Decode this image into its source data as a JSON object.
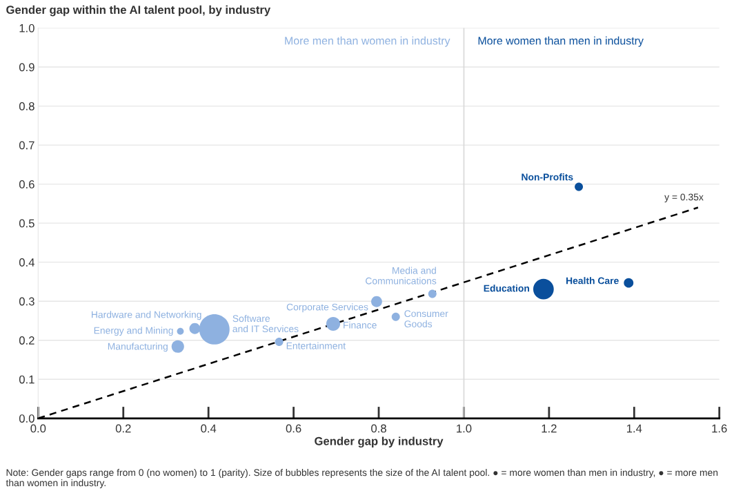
{
  "chart_data": {
    "type": "bubble",
    "title": "Gender gap within the AI talent pool, by industry",
    "xlabel": "Gender gap by industry",
    "series": [
      {
        "color": "#8eb1e0",
        "x": [
          0.328,
          0.334,
          0.368,
          0.414,
          0.566,
          0.693,
          0.795,
          0.84,
          0.926
        ],
        "values": [
          0.184,
          0.223,
          0.23,
          0.228,
          0.196,
          0.242,
          0.299,
          0.26,
          0.319
        ],
        "sizes": [
          0.17,
          0.05,
          0.13,
          1,
          0.074,
          0.21,
          0.13,
          0.074,
          0.074
        ]
      },
      {
        "color": "#0a4f9c",
        "x": [
          1.187,
          1.27,
          1.387
        ],
        "values": [
          0.331,
          0.593,
          0.347
        ],
        "sizes": [
          0.46,
          0.074,
          0.1
        ]
      },
      {
        "type": "line",
        "color": "#000000",
        "line_style": "dashed",
        "x": [
          0,
          1.55
        ],
        "values": [
          0,
          0.54
        ]
      }
    ],
    "annotations": [
      {
        "text": "Manufacturing",
        "x": 0.328,
        "y": 0.184
      },
      {
        "text": "Energy and Mining",
        "x": 0.334,
        "y": 0.223
      },
      {
        "text": "Hardware and Networking",
        "x": 0.368,
        "y": 0.23
      },
      {
        "text": "Software\nand IT Services",
        "x": 0.414,
        "y": 0.228
      },
      {
        "text": "Entertainment",
        "x": 0.566,
        "y": 0.196
      },
      {
        "text": "Finance",
        "x": 0.693,
        "y": 0.242
      },
      {
        "text": "Corporate Services",
        "x": 0.795,
        "y": 0.299
      },
      {
        "text": "Consumer\nGoods",
        "x": 0.84,
        "y": 0.26
      },
      {
        "text": "Media and\nCommunications",
        "x": 0.926,
        "y": 0.319
      },
      {
        "text": "Education",
        "x": 1.187,
        "y": 0.331
      },
      {
        "text": "Non-Profits",
        "x": 1.27,
        "y": 0.593
      },
      {
        "text": "Health Care",
        "x": 1.387,
        "y": 0.347
      },
      {
        "text": "y = 0.35x",
        "x": 1.55,
        "y": 0.54
      },
      "More men than women in industry",
      "More women than men in industry",
      "Note: Gender gaps range from 0 (no women) to 1 (parity). Size of bubbles represents the size of the AI talent pool. ● = more women than men in industry, ● = more men than women in industry."
    ],
    "ref_lines": [
      {
        "axis": "x",
        "value": 1.0,
        "color": "#d9d9d9"
      }
    ],
    "xlim": [
      0.0,
      1.6
    ],
    "xticks": [
      {
        "value": 0,
        "label": "0.0"
      },
      0.2,
      0.4,
      0.6,
      0.8,
      {
        "value": 1,
        "label": "1.0"
      },
      1.2,
      1.4,
      1.6
    ],
    "ylim": [
      0.0,
      1.0
    ],
    "yticks": [
      {
        "value": 0,
        "label": "0.0"
      },
      0.1,
      0.2,
      0.3,
      0.4,
      0.5,
      0.6,
      0.7,
      0.8,
      0.9,
      {
        "value": 1,
        "label": "1.0"
      }
    ],
    "grid": "y"
  }
}
